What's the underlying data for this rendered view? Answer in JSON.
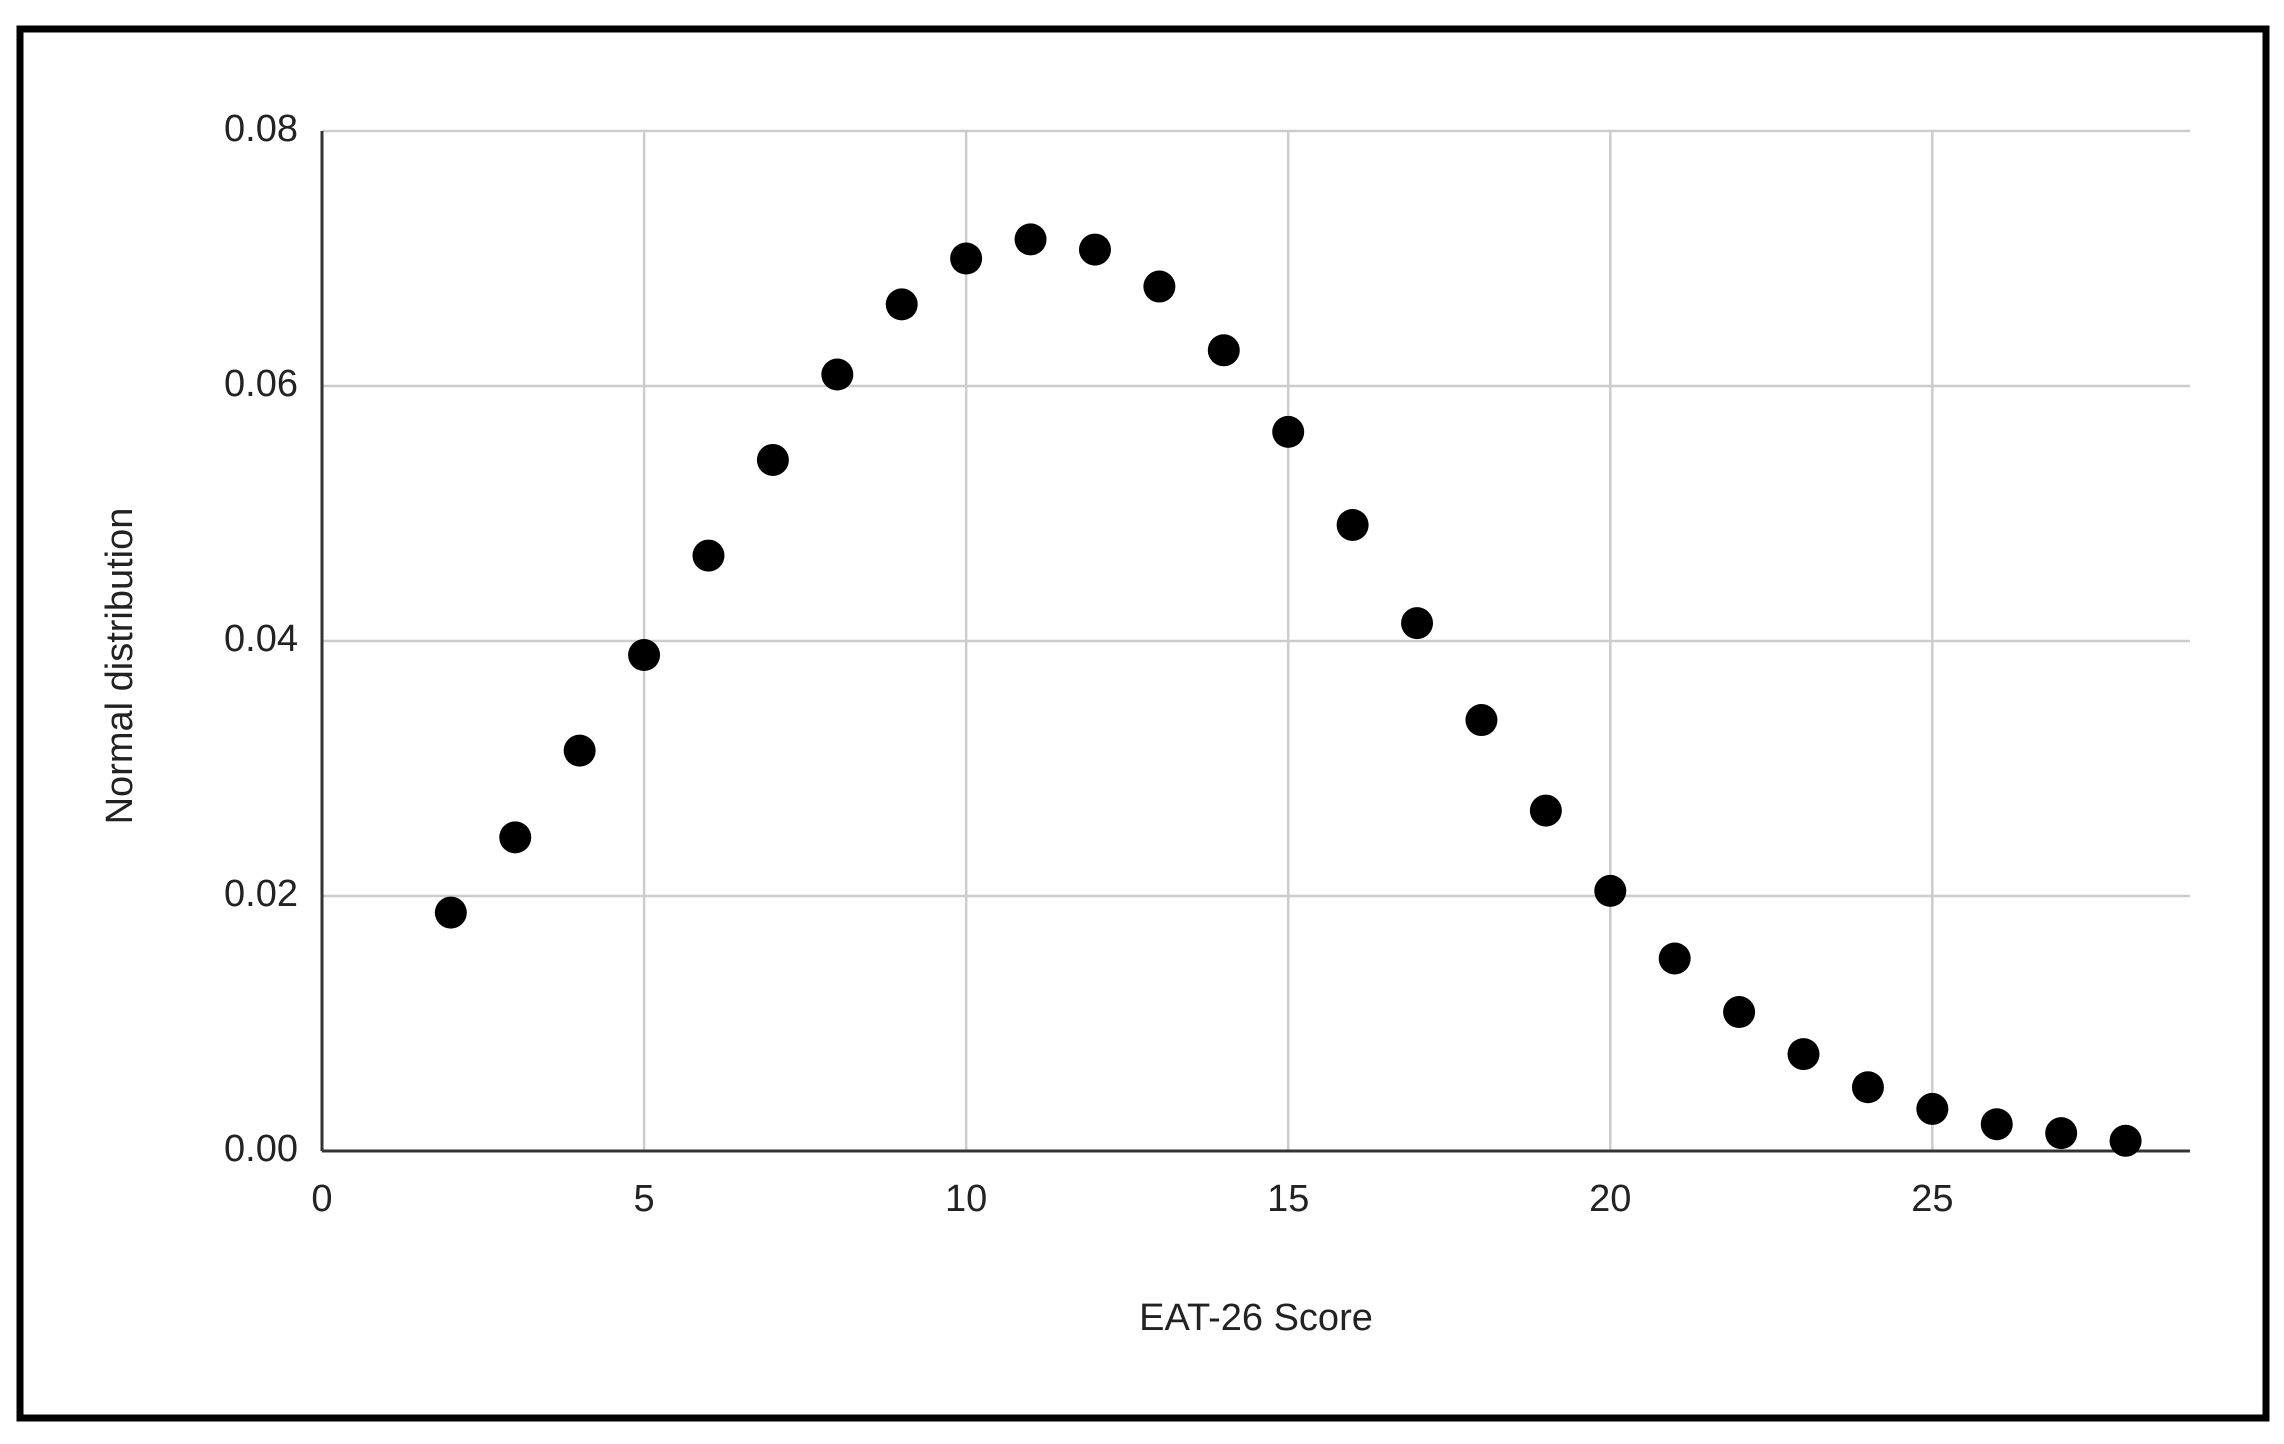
{
  "chart_data": {
    "type": "scatter",
    "x_label": "EAT-26 Score",
    "y_label": "Normal distribution",
    "x": [
      2,
      3,
      4,
      5,
      6,
      7,
      8,
      9,
      10,
      11,
      12,
      13,
      14,
      15,
      16,
      17,
      18,
      19,
      20,
      21,
      22,
      23,
      24,
      25,
      26,
      27,
      28
    ],
    "values": [
      0.0187,
      0.0246,
      0.0314,
      0.0389,
      0.0467,
      0.0542,
      0.0609,
      0.0664,
      0.07,
      0.0715,
      0.0707,
      0.0678,
      0.0628,
      0.0564,
      0.0491,
      0.0414,
      0.0338,
      0.0267,
      0.0204,
      0.0151,
      0.0109,
      0.0076,
      0.005,
      0.0033,
      0.0021,
      0.0014,
      0.0008
    ],
    "color": "#000000",
    "xlim": [
      0,
      29
    ],
    "xticks": [
      0,
      5,
      10,
      15,
      20,
      25
    ],
    "ylim": [
      0,
      0.08
    ],
    "yticks": [
      {
        "value": 0,
        "label": "0.00"
      },
      {
        "value": 0.02,
        "label": "0.02"
      },
      {
        "value": 0.04,
        "label": "0.04"
      },
      {
        "value": 0.06,
        "label": "0.06"
      },
      {
        "value": 0.08,
        "label": "0.08"
      }
    ],
    "grid": true
  }
}
